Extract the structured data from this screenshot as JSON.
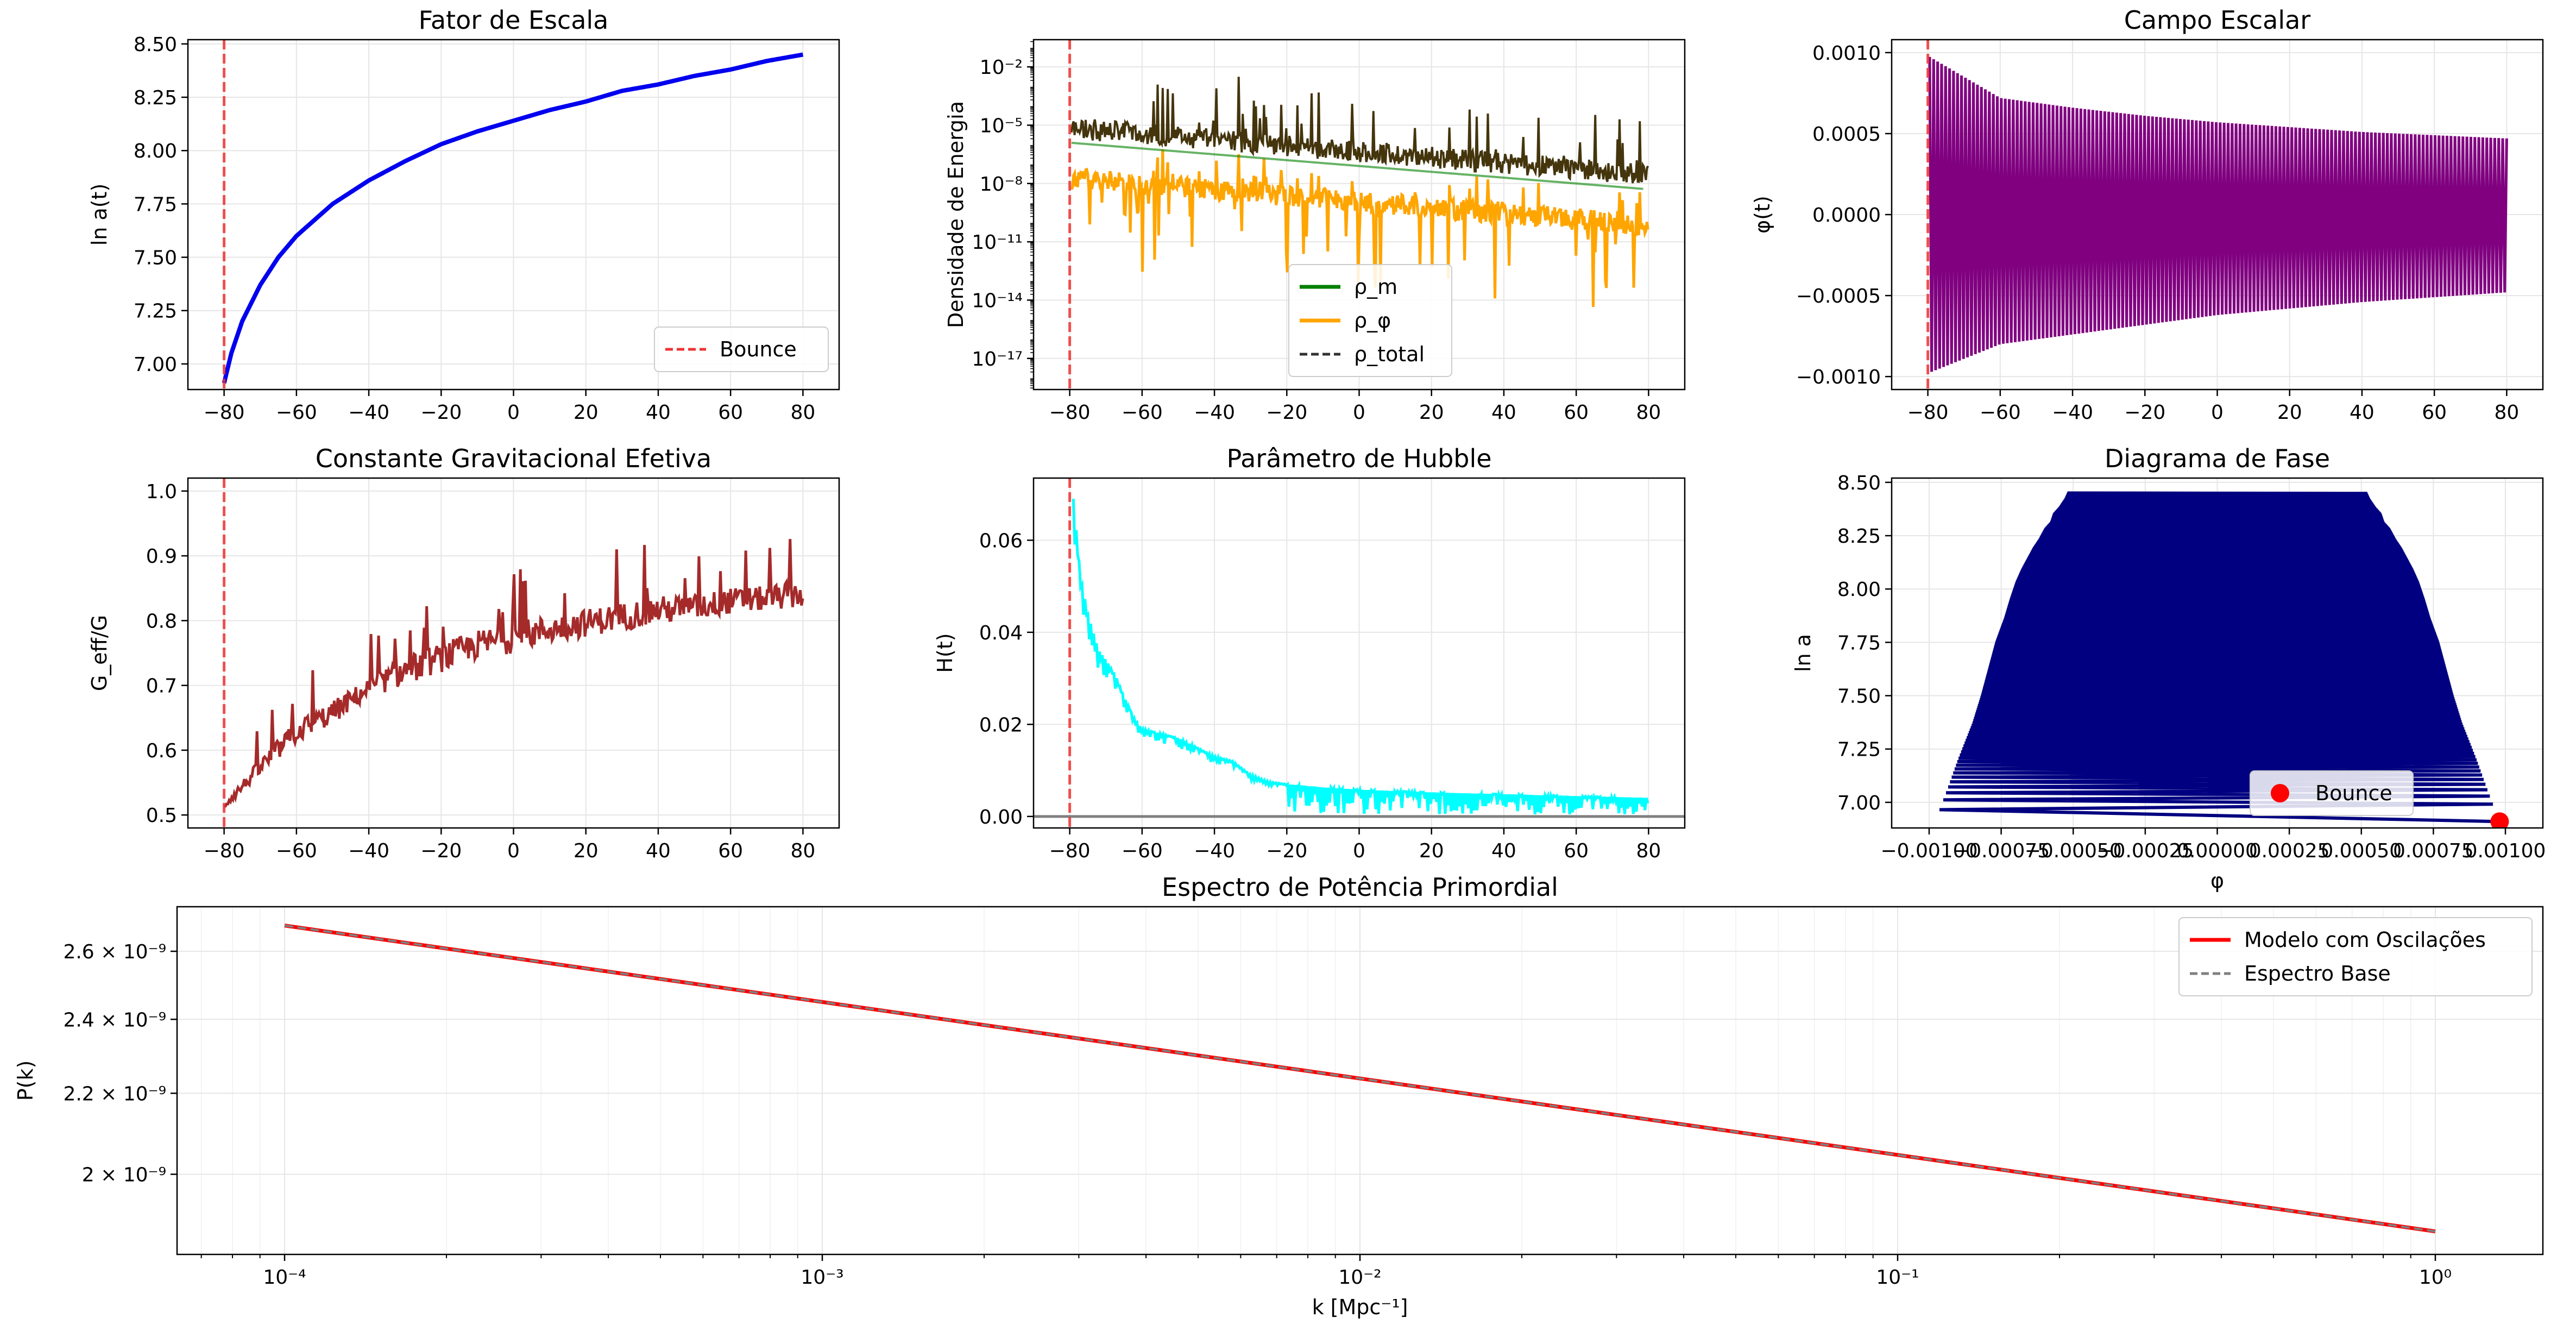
{
  "chart_data": [
    {
      "type": "line",
      "title": "Fator de Escala",
      "xlabel": "",
      "ylabel": "ln a(t)",
      "xlim": [
        -90,
        90
      ],
      "ylim": [
        6.88,
        8.52
      ],
      "xticks": [
        -80,
        -60,
        -40,
        -20,
        0,
        20,
        40,
        60,
        80
      ],
      "yticks": [
        7.0,
        7.25,
        7.5,
        7.75,
        8.0,
        8.25,
        8.5
      ],
      "ytick_labels": [
        "7.00",
        "7.25",
        "7.50",
        "7.75",
        "8.00",
        "8.25",
        "8.50"
      ],
      "grid": true,
      "legend_position": "lower-right",
      "series": [
        {
          "name": "",
          "color": "#0000ee",
          "x": [
            -80,
            -78,
            -75,
            -70,
            -65,
            -60,
            -50,
            -40,
            -30,
            -20,
            -10,
            0,
            10,
            20,
            30,
            40,
            50,
            60,
            70,
            80
          ],
          "y": [
            6.91,
            7.05,
            7.2,
            7.37,
            7.5,
            7.6,
            7.75,
            7.86,
            7.95,
            8.03,
            8.09,
            8.14,
            8.19,
            8.23,
            8.28,
            8.31,
            8.35,
            8.38,
            8.42,
            8.45
          ]
        }
      ],
      "vline": {
        "name": "Bounce",
        "x": -80,
        "color": "#ee3333"
      }
    },
    {
      "type": "line",
      "title": "",
      "xlabel": "",
      "ylabel": "Densidade de Energia",
      "yscale": "log",
      "xlim": [
        -90,
        90
      ],
      "ylim_log10": [
        -18.6,
        -0.6
      ],
      "xticks": [
        -80,
        -60,
        -40,
        -20,
        0,
        20,
        40,
        60,
        80
      ],
      "yticks_log10": [
        -2,
        -5,
        -8,
        -11,
        -14,
        -17
      ],
      "ytick_labels": [
        "10⁻²",
        "10⁻⁵",
        "10⁻⁸",
        "10⁻¹¹",
        "10⁻¹⁴",
        "10⁻¹⁷"
      ],
      "grid": true,
      "legend_position": "lower-center",
      "series": [
        {
          "name": "ρ_m",
          "color": "#008000"
        },
        {
          "name": "ρ_φ",
          "color": "#ffa500"
        },
        {
          "name": "ρ_total",
          "color": "#333333"
        }
      ],
      "vline": {
        "x": -80,
        "color": "#ee3333"
      }
    },
    {
      "type": "line",
      "title": "Campo Escalar",
      "xlabel": "",
      "ylabel": "φ(t)",
      "xlim": [
        -90,
        90
      ],
      "ylim": [
        -0.00108,
        0.00108
      ],
      "xticks": [
        -80,
        -60,
        -40,
        -20,
        0,
        20,
        40,
        60,
        80
      ],
      "yticks": [
        -0.001,
        -0.0005,
        0,
        0.0005,
        0.001
      ],
      "ytick_labels": [
        "−0.0010",
        "−0.0005",
        "0.0000",
        "0.0005",
        "0.0010"
      ],
      "grid": true,
      "series": [
        {
          "name": "",
          "color": "#800080",
          "envelope_x": [
            -80,
            -60,
            -40,
            -20,
            0,
            20,
            40,
            60,
            80
          ],
          "envelope_upper": [
            0.00098,
            0.00072,
            0.00066,
            0.00061,
            0.00057,
            0.00054,
            0.00051,
            0.00049,
            0.00047
          ],
          "envelope_lower": [
            -0.00098,
            -0.0008,
            -0.00074,
            -0.00068,
            -0.00062,
            -0.00058,
            -0.00054,
            -0.00051,
            -0.00048
          ]
        }
      ],
      "vline": {
        "x": -80,
        "color": "#ee3333"
      }
    },
    {
      "type": "line",
      "title": "Constante Gravitacional Efetiva",
      "xlabel": "",
      "ylabel": "G_eff/G",
      "xlim": [
        -90,
        90
      ],
      "ylim": [
        0.48,
        1.02
      ],
      "xticks": [
        -80,
        -60,
        -40,
        -20,
        0,
        20,
        40,
        60,
        80
      ],
      "yticks": [
        0.5,
        0.6,
        0.7,
        0.8,
        0.9,
        1.0
      ],
      "ytick_labels": [
        "0.5",
        "0.6",
        "0.7",
        "0.8",
        "0.9",
        "1.0"
      ],
      "grid": true,
      "series": [
        {
          "name": "",
          "color": "#a52a2a",
          "x": [
            -80,
            -70,
            -60,
            -50,
            -40,
            -30,
            -20,
            -10,
            0,
            10,
            20,
            30,
            40,
            50,
            60,
            70,
            80
          ],
          "y": [
            0.51,
            0.56,
            0.61,
            0.64,
            0.68,
            0.7,
            0.72,
            0.74,
            0.75,
            0.765,
            0.775,
            0.785,
            0.795,
            0.8,
            0.81,
            0.815,
            0.82
          ],
          "oscillation_top": [
            0.53,
            0.62,
            0.69,
            0.72,
            0.75,
            0.8,
            0.82,
            0.84,
            0.86,
            0.86,
            0.87,
            0.88,
            0.89,
            0.89,
            0.9,
            0.9,
            0.92
          ]
        }
      ],
      "vline": {
        "x": -80,
        "color": "#ee3333"
      }
    },
    {
      "type": "line",
      "title": "Parâmetro de Hubble",
      "xlabel": "",
      "ylabel": "H(t)",
      "xlim": [
        -90,
        90
      ],
      "ylim": [
        -0.0025,
        0.0735
      ],
      "xticks": [
        -80,
        -60,
        -40,
        -20,
        0,
        20,
        40,
        60,
        80
      ],
      "yticks": [
        0.0,
        0.02,
        0.04,
        0.06
      ],
      "ytick_labels": [
        "0.00",
        "0.02",
        "0.04",
        "0.06"
      ],
      "grid": true,
      "series": [
        {
          "name": "",
          "color": "#00ffff",
          "x": [
            -79,
            -77,
            -75,
            -72,
            -70,
            -67,
            -65,
            -62,
            -60,
            -55,
            -50,
            -45,
            -40,
            -35,
            -30,
            -25,
            -20,
            -10,
            0,
            20,
            40,
            60,
            80
          ],
          "y": [
            0.069,
            0.052,
            0.044,
            0.036,
            0.034,
            0.03,
            0.026,
            0.021,
            0.019,
            0.018,
            0.017,
            0.015,
            0.013,
            0.012,
            0.009,
            0.0075,
            0.007,
            0.0063,
            0.0058,
            0.0052,
            0.0048,
            0.0044,
            0.004
          ]
        }
      ],
      "hline": {
        "y": 0.0,
        "color": "#808080"
      },
      "vline": {
        "x": -80,
        "color": "#ee3333"
      }
    },
    {
      "type": "scatter",
      "title": "Diagrama de Fase",
      "xlabel": "φ",
      "ylabel": "ln a",
      "xlim": [
        -0.00113,
        0.00113
      ],
      "ylim": [
        6.88,
        8.52
      ],
      "xticks": [
        -0.001,
        -0.00075,
        -0.0005,
        -0.00025,
        0,
        0.00025,
        0.0005,
        0.00075,
        0.001
      ],
      "xtick_labels": [
        "−0.00100",
        "−0.00075",
        "−0.00050",
        "−0.00025",
        "0.00000",
        "0.00025",
        "0.00050",
        "0.00075",
        "0.00100"
      ],
      "yticks": [
        7.0,
        7.25,
        7.5,
        7.75,
        8.0,
        8.25,
        8.5
      ],
      "ytick_labels": [
        "7.00",
        "7.25",
        "7.50",
        "7.75",
        "8.00",
        "8.25",
        "8.50"
      ],
      "grid": true,
      "legend_position": "lower-center",
      "series": [
        {
          "name": "",
          "color": "#000080",
          "region_y": [
            6.91,
            7.05,
            7.2,
            7.37,
            7.5,
            7.6,
            7.75,
            7.86,
            7.95,
            8.03,
            8.09,
            8.14,
            8.19,
            8.23,
            8.28,
            8.31,
            8.35,
            8.38,
            8.42,
            8.45
          ],
          "region_left": [
            -0.00098,
            -0.00094,
            -0.0009,
            -0.00085,
            -0.00082,
            -0.0008,
            -0.00077,
            -0.00074,
            -0.00072,
            -0.0007,
            -0.00068,
            -0.00066,
            -0.00064,
            -0.00062,
            -0.0006,
            -0.00058,
            -0.00057,
            -0.00055,
            -0.00053,
            -0.00052
          ],
          "region_right": [
            0.00098,
            0.00094,
            0.0009,
            0.00085,
            0.00082,
            0.0008,
            0.00077,
            0.00074,
            0.00072,
            0.0007,
            0.00068,
            0.00066,
            0.00064,
            0.00062,
            0.0006,
            0.00058,
            0.00057,
            0.00055,
            0.00053,
            0.00052
          ]
        },
        {
          "name": "Bounce",
          "color": "#ff0000",
          "x": [
            0.00098
          ],
          "y": [
            6.91
          ]
        }
      ]
    },
    {
      "type": "line",
      "title": "Espectro de Potência Primordial",
      "xlabel": "k [Mpc⁻¹]",
      "ylabel": "P(k)",
      "xscale": "log",
      "yscale": "log",
      "xlim_log10": [
        -4.2,
        0.2
      ],
      "ylim": [
        1.82e-09,
        2.74e-09
      ],
      "xticks_log10": [
        -4,
        -3,
        -2,
        -1,
        0
      ],
      "xtick_labels": [
        "10⁻⁴",
        "10⁻³",
        "10⁻²",
        "10⁻¹",
        "10⁰"
      ],
      "yticks": [
        2e-09,
        2.2e-09,
        2.4e-09,
        2.6e-09
      ],
      "ytick_labels": [
        "2 × 10⁻⁹",
        "2.2 × 10⁻⁹",
        "2.4 × 10⁻⁹",
        "2.6 × 10⁻⁹"
      ],
      "grid": true,
      "legend_position": "top-right",
      "series": [
        {
          "name": "Modelo com Oscilações",
          "color": "#ff0000",
          "x": [
            0.0001,
            1.0
          ],
          "y": [
            2.68e-09,
            1.87e-09
          ]
        },
        {
          "name": "Espectro Base",
          "color": "#808080",
          "x": [
            0.0001,
            1.0
          ],
          "y": [
            2.68e-09,
            1.87e-09
          ]
        }
      ]
    }
  ]
}
